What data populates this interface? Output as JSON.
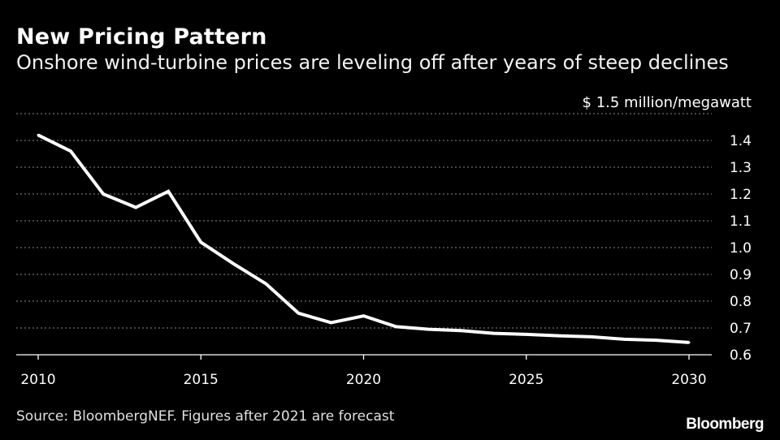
{
  "header": {
    "title": "New Pricing Pattern",
    "subtitle": "Onshore wind-turbine prices are leveling off after years of steep declines"
  },
  "footer": {
    "source": "Source: BloombergNEF. Figures after 2021 are forecast",
    "logo": "Bloomberg"
  },
  "colors": {
    "background": "#000000",
    "line": "#ffffff",
    "grid": "#8a8a8a",
    "text": "#ffffff"
  },
  "chart_data": {
    "type": "line",
    "title": "New Pricing Pattern",
    "subtitle": "Onshore wind-turbine prices are leveling off after years of steep declines",
    "unit_label": "$ 1.5 million/megawatt",
    "xlabel": "",
    "ylabel": "",
    "x": [
      2010,
      2011,
      2012,
      2013,
      2014,
      2015,
      2016,
      2017,
      2018,
      2019,
      2020,
      2021,
      2022,
      2023,
      2024,
      2025,
      2026,
      2027,
      2028,
      2029,
      2030
    ],
    "series": [
      {
        "name": "Onshore wind-turbine price",
        "values": [
          1.42,
          1.36,
          1.2,
          1.15,
          1.21,
          1.02,
          0.94,
          0.865,
          0.755,
          0.72,
          0.745,
          0.705,
          0.695,
          0.69,
          0.68,
          0.676,
          0.671,
          0.667,
          0.658,
          0.654,
          0.646
        ]
      }
    ],
    "xlim": [
      2010,
      2030
    ],
    "ylim": [
      0.6,
      1.5
    ],
    "x_ticks": [
      2010,
      2015,
      2020,
      2025,
      2030
    ],
    "x_tick_labels": [
      "2010",
      "2015",
      "2020",
      "2025",
      "2030"
    ],
    "y_ticks": [
      0.6,
      0.7,
      0.8,
      0.9,
      1.0,
      1.1,
      1.2,
      1.3,
      1.4
    ],
    "y_tick_labels": [
      "0.6",
      "0.7",
      "0.8",
      "0.9",
      "1.0",
      "1.1",
      "1.2",
      "1.3",
      "1.4"
    ],
    "grid": true,
    "y_axis_side": "right",
    "legend": "none"
  }
}
